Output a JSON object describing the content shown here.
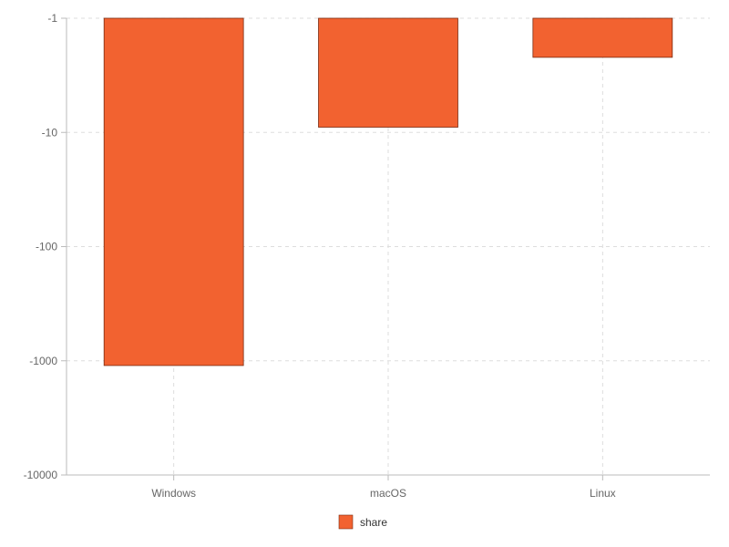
{
  "chart_data": {
    "type": "bar",
    "categories": [
      "Windows",
      "macOS",
      "Linux"
    ],
    "series": [
      {
        "name": "share",
        "values": [
          -1100,
          -9,
          -2.2
        ]
      }
    ],
    "y_scale": "log",
    "y_ticks": [
      -1,
      -10,
      -100,
      -1000,
      -10000
    ],
    "y_tick_labels": [
      "-1",
      "-10",
      "-100",
      "-1000",
      "-10000"
    ],
    "ylim": [
      -1,
      -10000
    ],
    "grid": true,
    "legend_position": "bottom-center",
    "colors": {
      "bar_fill": "#f26230",
      "bar_stroke": "#7a2a10",
      "grid": "#dddddd",
      "axis": "#bbbbbb"
    }
  }
}
